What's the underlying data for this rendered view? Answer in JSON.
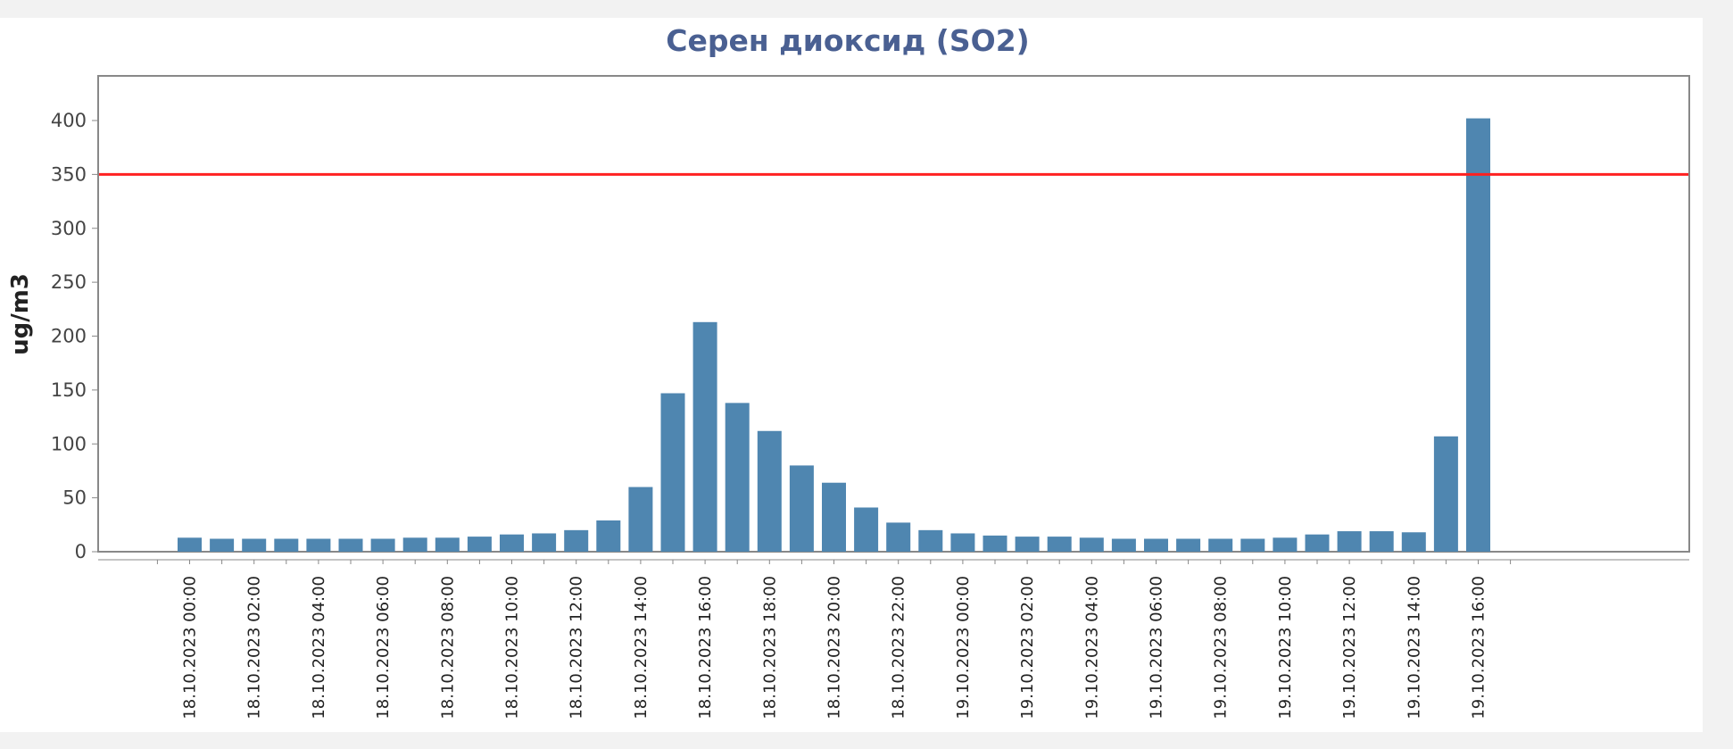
{
  "chart_data": {
    "type": "bar",
    "title": "Серен диоксид (SO2)",
    "ylabel": "ug/m3",
    "xlabel": "",
    "ylim": [
      0,
      440
    ],
    "yticks": [
      0,
      50,
      100,
      150,
      200,
      250,
      300,
      350,
      400
    ],
    "grid": false,
    "legend": "none",
    "threshold": {
      "value": 350,
      "color": "#ff2020"
    },
    "colors": {
      "bar": "#4f86b0",
      "title": "#4a6092",
      "plot_border": "#888888"
    },
    "x_tick_labels": [
      "18.10.2023 00:00",
      "18.10.2023 02:00",
      "18.10.2023 04:00",
      "18.10.2023 06:00",
      "18.10.2023 08:00",
      "18.10.2023 10:00",
      "18.10.2023 12:00",
      "18.10.2023 14:00",
      "18.10.2023 16:00",
      "18.10.2023 18:00",
      "18.10.2023 20:00",
      "18.10.2023 22:00",
      "19.10.2023 00:00",
      "19.10.2023 02:00",
      "19.10.2023 04:00",
      "19.10.2023 06:00",
      "19.10.2023 08:00",
      "19.10.2023 10:00",
      "19.10.2023 12:00",
      "19.10.2023 14:00",
      "19.10.2023 16:00"
    ],
    "categories": [
      "18.10.2023 00:00",
      "18.10.2023 01:00",
      "18.10.2023 02:00",
      "18.10.2023 03:00",
      "18.10.2023 04:00",
      "18.10.2023 05:00",
      "18.10.2023 06:00",
      "18.10.2023 07:00",
      "18.10.2023 08:00",
      "18.10.2023 09:00",
      "18.10.2023 10:00",
      "18.10.2023 11:00",
      "18.10.2023 12:00",
      "18.10.2023 13:00",
      "18.10.2023 14:00",
      "18.10.2023 15:00",
      "18.10.2023 16:00",
      "18.10.2023 17:00",
      "18.10.2023 18:00",
      "18.10.2023 19:00",
      "18.10.2023 20:00",
      "18.10.2023 21:00",
      "18.10.2023 22:00",
      "18.10.2023 23:00",
      "19.10.2023 00:00",
      "19.10.2023 01:00",
      "19.10.2023 02:00",
      "19.10.2023 03:00",
      "19.10.2023 04:00",
      "19.10.2023 05:00",
      "19.10.2023 06:00",
      "19.10.2023 07:00",
      "19.10.2023 08:00",
      "19.10.2023 09:00",
      "19.10.2023 10:00",
      "19.10.2023 11:00",
      "19.10.2023 12:00",
      "19.10.2023 13:00",
      "19.10.2023 14:00",
      "19.10.2023 15:00",
      "19.10.2023 16:00"
    ],
    "values": [
      13,
      12,
      12,
      12,
      12,
      12,
      12,
      13,
      13,
      14,
      16,
      17,
      20,
      29,
      60,
      147,
      213,
      138,
      112,
      80,
      64,
      41,
      27,
      20,
      17,
      15,
      14,
      14,
      13,
      12,
      12,
      12,
      12,
      12,
      13,
      16,
      19,
      19,
      18,
      107,
      402
    ]
  }
}
